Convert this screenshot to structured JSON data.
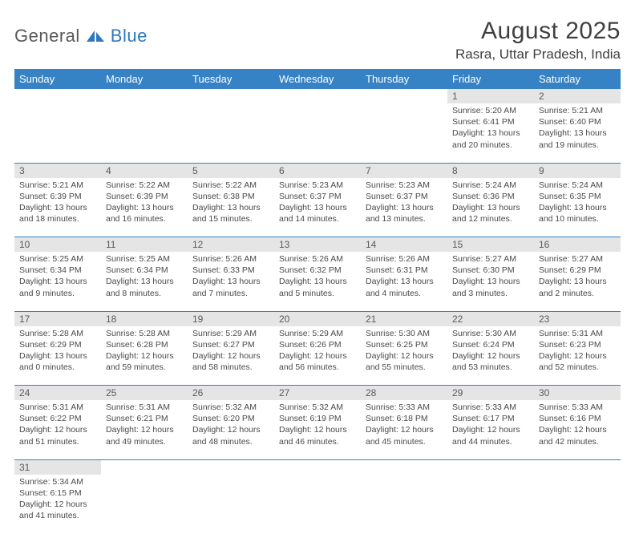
{
  "logo": {
    "textA": "General",
    "textB": "Blue"
  },
  "title": "August 2025",
  "location": "Rasra, Uttar Pradesh, India",
  "colors": {
    "header_bg": "#3682c4",
    "header_text": "#ffffff",
    "daynum_bg": "#e5e5e5",
    "border": "#3682c4",
    "body_text": "#4a4a4a"
  },
  "days": [
    "Sunday",
    "Monday",
    "Tuesday",
    "Wednesday",
    "Thursday",
    "Friday",
    "Saturday"
  ],
  "weeks": [
    [
      null,
      null,
      null,
      null,
      null,
      {
        "n": "1",
        "sr": "5:20 AM",
        "ss": "6:41 PM",
        "dl": "13 hours and 20 minutes."
      },
      {
        "n": "2",
        "sr": "5:21 AM",
        "ss": "6:40 PM",
        "dl": "13 hours and 19 minutes."
      }
    ],
    [
      {
        "n": "3",
        "sr": "5:21 AM",
        "ss": "6:39 PM",
        "dl": "13 hours and 18 minutes."
      },
      {
        "n": "4",
        "sr": "5:22 AM",
        "ss": "6:39 PM",
        "dl": "13 hours and 16 minutes."
      },
      {
        "n": "5",
        "sr": "5:22 AM",
        "ss": "6:38 PM",
        "dl": "13 hours and 15 minutes."
      },
      {
        "n": "6",
        "sr": "5:23 AM",
        "ss": "6:37 PM",
        "dl": "13 hours and 14 minutes."
      },
      {
        "n": "7",
        "sr": "5:23 AM",
        "ss": "6:37 PM",
        "dl": "13 hours and 13 minutes."
      },
      {
        "n": "8",
        "sr": "5:24 AM",
        "ss": "6:36 PM",
        "dl": "13 hours and 12 minutes."
      },
      {
        "n": "9",
        "sr": "5:24 AM",
        "ss": "6:35 PM",
        "dl": "13 hours and 10 minutes."
      }
    ],
    [
      {
        "n": "10",
        "sr": "5:25 AM",
        "ss": "6:34 PM",
        "dl": "13 hours and 9 minutes."
      },
      {
        "n": "11",
        "sr": "5:25 AM",
        "ss": "6:34 PM",
        "dl": "13 hours and 8 minutes."
      },
      {
        "n": "12",
        "sr": "5:26 AM",
        "ss": "6:33 PM",
        "dl": "13 hours and 7 minutes."
      },
      {
        "n": "13",
        "sr": "5:26 AM",
        "ss": "6:32 PM",
        "dl": "13 hours and 5 minutes."
      },
      {
        "n": "14",
        "sr": "5:26 AM",
        "ss": "6:31 PM",
        "dl": "13 hours and 4 minutes."
      },
      {
        "n": "15",
        "sr": "5:27 AM",
        "ss": "6:30 PM",
        "dl": "13 hours and 3 minutes."
      },
      {
        "n": "16",
        "sr": "5:27 AM",
        "ss": "6:29 PM",
        "dl": "13 hours and 2 minutes."
      }
    ],
    [
      {
        "n": "17",
        "sr": "5:28 AM",
        "ss": "6:29 PM",
        "dl": "13 hours and 0 minutes."
      },
      {
        "n": "18",
        "sr": "5:28 AM",
        "ss": "6:28 PM",
        "dl": "12 hours and 59 minutes."
      },
      {
        "n": "19",
        "sr": "5:29 AM",
        "ss": "6:27 PM",
        "dl": "12 hours and 58 minutes."
      },
      {
        "n": "20",
        "sr": "5:29 AM",
        "ss": "6:26 PM",
        "dl": "12 hours and 56 minutes."
      },
      {
        "n": "21",
        "sr": "5:30 AM",
        "ss": "6:25 PM",
        "dl": "12 hours and 55 minutes."
      },
      {
        "n": "22",
        "sr": "5:30 AM",
        "ss": "6:24 PM",
        "dl": "12 hours and 53 minutes."
      },
      {
        "n": "23",
        "sr": "5:31 AM",
        "ss": "6:23 PM",
        "dl": "12 hours and 52 minutes."
      }
    ],
    [
      {
        "n": "24",
        "sr": "5:31 AM",
        "ss": "6:22 PM",
        "dl": "12 hours and 51 minutes."
      },
      {
        "n": "25",
        "sr": "5:31 AM",
        "ss": "6:21 PM",
        "dl": "12 hours and 49 minutes."
      },
      {
        "n": "26",
        "sr": "5:32 AM",
        "ss": "6:20 PM",
        "dl": "12 hours and 48 minutes."
      },
      {
        "n": "27",
        "sr": "5:32 AM",
        "ss": "6:19 PM",
        "dl": "12 hours and 46 minutes."
      },
      {
        "n": "28",
        "sr": "5:33 AM",
        "ss": "6:18 PM",
        "dl": "12 hours and 45 minutes."
      },
      {
        "n": "29",
        "sr": "5:33 AM",
        "ss": "6:17 PM",
        "dl": "12 hours and 44 minutes."
      },
      {
        "n": "30",
        "sr": "5:33 AM",
        "ss": "6:16 PM",
        "dl": "12 hours and 42 minutes."
      }
    ],
    [
      {
        "n": "31",
        "sr": "5:34 AM",
        "ss": "6:15 PM",
        "dl": "12 hours and 41 minutes."
      },
      null,
      null,
      null,
      null,
      null,
      null
    ]
  ],
  "labels": {
    "sunrise": "Sunrise:",
    "sunset": "Sunset:",
    "daylight": "Daylight:"
  }
}
